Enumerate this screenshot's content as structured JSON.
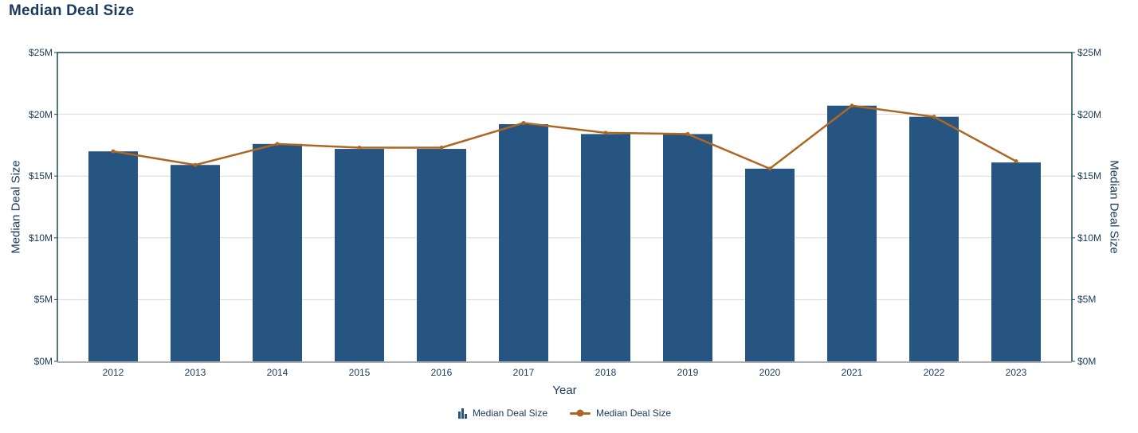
{
  "chart": {
    "title": "Median Deal Size",
    "x_axis_title": "Year",
    "y_axis_title_left": "Median Deal Size",
    "y_axis_title_right": "Median Deal Size",
    "legend": [
      {
        "label": "Median Deal Size",
        "type": "bar",
        "icon": "bar-chart-icon"
      },
      {
        "label": "Median Deal Size",
        "type": "line",
        "icon": "line-marker-icon"
      }
    ]
  },
  "chart_data": {
    "type": "bar",
    "title": "Median Deal Size",
    "xlabel": "Year",
    "ylabel_left": "Median Deal Size",
    "ylabel_right": "Median Deal Size",
    "categories": [
      "2012",
      "2013",
      "2014",
      "2015",
      "2016",
      "2017",
      "2018",
      "2019",
      "2020",
      "2021",
      "2022",
      "2023"
    ],
    "series": [
      {
        "name": "Median Deal Size",
        "type": "bar",
        "unit": "$M",
        "values": [
          17.0,
          15.9,
          17.6,
          17.2,
          17.2,
          19.2,
          18.4,
          18.4,
          15.6,
          20.7,
          19.8,
          16.1
        ]
      },
      {
        "name": "Median Deal Size",
        "type": "line",
        "unit": "$M",
        "values": [
          17.0,
          15.9,
          17.6,
          17.3,
          17.3,
          19.3,
          18.5,
          18.4,
          15.6,
          20.7,
          19.8,
          16.2
        ]
      }
    ],
    "ylim": [
      0,
      25
    ],
    "y_tick_values": [
      25,
      20,
      15,
      10,
      5,
      0
    ],
    "y_tick_labels": [
      "$25M",
      "$20M",
      "$15M",
      "$10M",
      "$5M",
      "$0M"
    ],
    "grid": true,
    "legend_position": "bottom"
  },
  "colors": {
    "bar": "#255580",
    "line": "#ae6723",
    "text": "#1a3a5e",
    "plot_border": "#1b4a50",
    "bottom_axis": "#aeaeae",
    "gridline": "#d9d9d9",
    "background": "#ffffff"
  }
}
